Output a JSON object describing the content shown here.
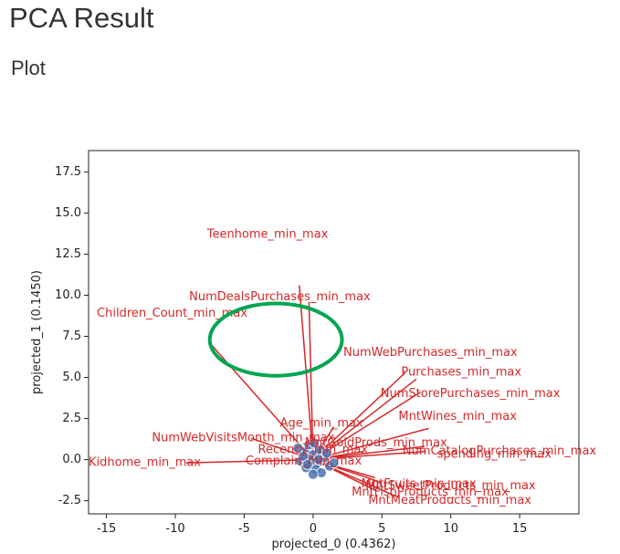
{
  "page": {
    "title": "PCA Result",
    "section": "Plot"
  },
  "chart_data": {
    "type": "scatter",
    "xlabel": "projected_0 (0.4362)",
    "ylabel": "projected_1 (0.1450)",
    "xlim": [
      -16.3,
      19.3
    ],
    "ylim": [
      -3.3,
      18.8
    ],
    "xticks": [
      -15,
      -10,
      -5,
      0,
      5,
      10,
      15
    ],
    "xtick_labels": [
      "-15",
      "-10",
      "-5",
      "0",
      "5",
      "10",
      "15"
    ],
    "yticks": [
      -2.5,
      0.0,
      2.5,
      5.0,
      7.5,
      10.0,
      12.5,
      15.0,
      17.5
    ],
    "ytick_labels": [
      "-2.5",
      "0.0",
      "2.5",
      "5.0",
      "7.5",
      "10.0",
      "12.5",
      "15.0",
      "17.5"
    ],
    "grid": false,
    "colors": {
      "vector": "#d62728",
      "point": "#4c72b0",
      "highlight": "#00a651"
    },
    "points": [
      {
        "x": -0.6,
        "y": 0.5
      },
      {
        "x": -0.3,
        "y": 0.9
      },
      {
        "x": 0.0,
        "y": 0.3
      },
      {
        "x": 0.3,
        "y": -0.2
      },
      {
        "x": -0.9,
        "y": -0.1
      },
      {
        "x": -0.5,
        "y": -0.5
      },
      {
        "x": 0.5,
        "y": 0.6
      },
      {
        "x": 0.8,
        "y": 0.1
      },
      {
        "x": 1.2,
        "y": -0.4
      },
      {
        "x": 0.2,
        "y": -0.6
      },
      {
        "x": -0.2,
        "y": 0.0
      },
      {
        "x": 0.6,
        "y": -0.8
      },
      {
        "x": -0.7,
        "y": 0.2
      },
      {
        "x": 0.1,
        "y": 1.0
      },
      {
        "x": 1.0,
        "y": 0.4
      },
      {
        "x": -1.1,
        "y": 0.7
      },
      {
        "x": 0.4,
        "y": 0.0
      },
      {
        "x": -0.4,
        "y": -0.3
      },
      {
        "x": 1.5,
        "y": -0.2
      },
      {
        "x": 0.0,
        "y": -0.9
      }
    ],
    "vectors": [
      {
        "label": "Teenhome_min_max",
        "x": -1.0,
        "y": 10.6,
        "lx": -7.7,
        "ly": 13.7
      },
      {
        "label": "NumDealsPurchases_min_max",
        "x": -0.3,
        "y": 9.6,
        "lx": -9.0,
        "ly": 9.9
      },
      {
        "label": "Children_Count_min_max",
        "x": -7.4,
        "y": 7.0,
        "lx": -15.7,
        "ly": 8.9
      },
      {
        "label": "NumWebPurchases_min_max",
        "x": 6.7,
        "y": 5.3,
        "lx": 2.2,
        "ly": 6.5
      },
      {
        "label": "Purchases_min_max",
        "x": 7.5,
        "y": 4.9,
        "lx": 6.4,
        "ly": 5.3
      },
      {
        "label": "NumStorePurchases_min_max",
        "x": 7.8,
        "y": 4.1,
        "lx": 4.9,
        "ly": 4.0
      },
      {
        "label": "MntWines_min_max",
        "x": 8.4,
        "y": 1.9,
        "lx": 6.2,
        "ly": 2.6
      },
      {
        "label": "Age_min_max",
        "x": 1.5,
        "y": 2.0,
        "lx": -2.4,
        "ly": 2.2
      },
      {
        "label": "NumWebVisitsMonth_min_max",
        "x": -4.5,
        "y": 1.3,
        "lx": -11.7,
        "ly": 1.3
      },
      {
        "label": "Kidhome_min_max",
        "x": -9.2,
        "y": -0.2,
        "lx": -16.3,
        "ly": -0.2
      },
      {
        "label": "spending_min_max",
        "x": 8.2,
        "y": 0.5,
        "lx": 9.0,
        "ly": 0.3
      },
      {
        "label": "NumCatalogPurchases_min_max",
        "x": 8.1,
        "y": 0.8,
        "lx": 6.5,
        "ly": 0.5
      },
      {
        "label": "MntGoldProds_min_max",
        "x": 3.7,
        "y": 0.5,
        "lx": -0.6,
        "ly": 1.0
      },
      {
        "label": "Recency_min_max",
        "x": -0.6,
        "y": 0.4,
        "lx": -4.0,
        "ly": 0.6
      },
      {
        "label": "Complain_min_max",
        "x": -0.5,
        "y": -0.1,
        "lx": -4.9,
        "ly": -0.1
      },
      {
        "label": "MntFruits_min_max",
        "x": 4.5,
        "y": -1.1,
        "lx": 3.5,
        "ly": -1.5
      },
      {
        "label": "MntSweetProducts_min_max",
        "x": 5.0,
        "y": -1.4,
        "lx": 3.8,
        "ly": -1.6
      },
      {
        "label": "MntFishProducts_min_max",
        "x": 4.6,
        "y": -1.9,
        "lx": 2.8,
        "ly": -2.0
      },
      {
        "label": "MntMeatProducts_min_max",
        "x": 6.2,
        "y": -2.3,
        "lx": 4.0,
        "ly": -2.5
      }
    ],
    "annotations": [
      {
        "type": "ellipse",
        "color": "#00a651",
        "cx": -2.7,
        "cy": 7.3,
        "rx": 4.8,
        "ry": 2.2
      }
    ]
  }
}
